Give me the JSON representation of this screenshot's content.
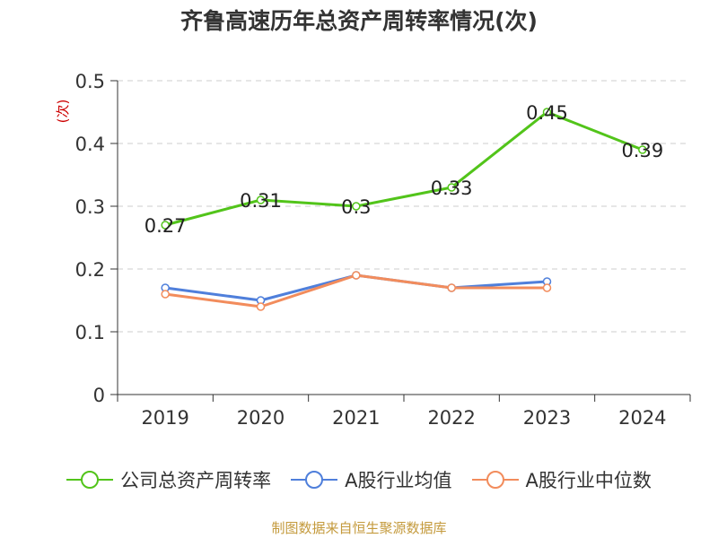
{
  "chart_data": {
    "type": "line",
    "title": "齐鲁高速历年总资产周转率情况(次)",
    "ylabel": "(次)",
    "xlabel": "",
    "categories": [
      "2019",
      "2020",
      "2021",
      "2022",
      "2023",
      "2024"
    ],
    "ylim": [
      0,
      0.5
    ],
    "yticks": [
      "0",
      "0.1",
      "0.2",
      "0.3",
      "0.4",
      "0.5"
    ],
    "grid": true,
    "legend_position": "bottom",
    "series": [
      {
        "name": "公司总资产周转率",
        "color": "#52c41a",
        "values": [
          0.27,
          0.31,
          0.3,
          0.33,
          0.45,
          0.39
        ],
        "labels": [
          "0.27",
          "0.31",
          "0.3",
          "0.33",
          "0.45",
          "0.39"
        ]
      },
      {
        "name": "A股行业均值",
        "color": "#4f7fdb",
        "values": [
          0.17,
          0.15,
          0.19,
          0.17,
          0.18,
          null
        ]
      },
      {
        "name": "A股行业中位数",
        "color": "#f28c5c",
        "values": [
          0.16,
          0.14,
          0.19,
          0.17,
          0.17,
          null
        ]
      }
    ]
  },
  "source": "制图数据来自恒生聚源数据库"
}
